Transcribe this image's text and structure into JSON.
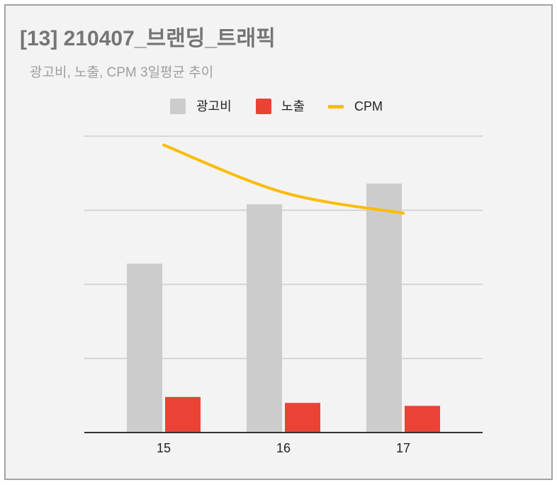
{
  "chart_data": {
    "type": "bar",
    "title": "[13] 210407_브랜딩_트래픽",
    "subtitle": "광고비, 노출, CPM 3일평균 추이",
    "categories": [
      "15",
      "16",
      "17"
    ],
    "series": [
      {
        "name": "광고비",
        "type": "bar",
        "color": "#cccccc",
        "values": [
          57,
          77,
          84
        ]
      },
      {
        "name": "노출",
        "type": "bar",
        "color": "#ea4335",
        "values": [
          12,
          10,
          9
        ]
      },
      {
        "name": "CPM",
        "type": "line",
        "color": "#fbbc04",
        "values": [
          97,
          81,
          74
        ]
      }
    ],
    "xlabel": "",
    "ylabel": "",
    "ylim": [
      0,
      100
    ],
    "grid": true,
    "legend_position": "top"
  }
}
